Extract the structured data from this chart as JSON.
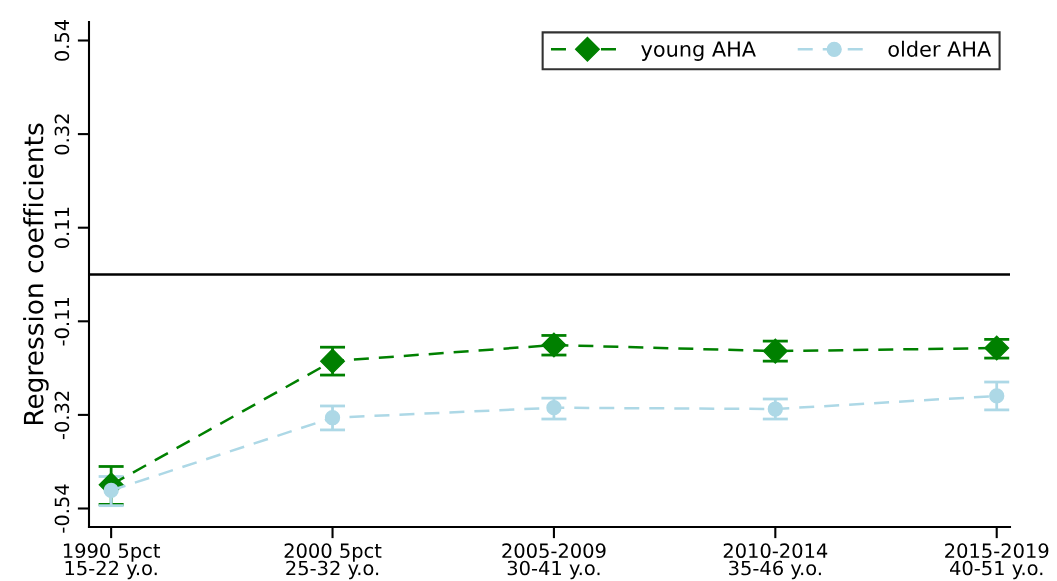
{
  "chart_data": {
    "type": "line",
    "ylabel": "Regression coefficients",
    "categories": [
      "1990 5pct\n15-22 y.o.",
      "2000 5pct\n25-32 y.o.",
      "2005-2009\n30-41 y.o.",
      "2010-2014\n35-46 y.o.",
      "2015-2019\n40-51 y.o."
    ],
    "ylim": [
      -0.58,
      0.58
    ],
    "yticks": [
      {
        "value": -0.5375,
        "label": "-0.54"
      },
      {
        "value": -0.3225,
        "label": "-0.32"
      },
      {
        "value": -0.1075,
        "label": "-0.11"
      },
      {
        "value": 0.1075,
        "label": "0.11"
      },
      {
        "value": 0.3225,
        "label": "0.32"
      },
      {
        "value": 0.5375,
        "label": "0.54"
      }
    ],
    "series": [
      {
        "name": "young AHA",
        "color": "#008000",
        "marker": "diamond",
        "line_style": "dashed",
        "values": [
          -0.483,
          -0.199,
          -0.162,
          -0.176,
          -0.169
        ],
        "errors": [
          [
            -0.528,
            -0.441
          ],
          [
            -0.231,
            -0.167
          ],
          [
            -0.185,
            -0.14
          ],
          [
            -0.199,
            -0.153
          ],
          [
            -0.192,
            -0.149
          ]
        ]
      },
      {
        "name": "older AHA",
        "color": "#add8e6",
        "marker": "circle",
        "line_style": "dashed",
        "values": [
          -0.496,
          -0.329,
          -0.306,
          -0.309,
          -0.279
        ],
        "errors": [
          [
            -0.531,
            -0.464
          ],
          [
            -0.357,
            -0.302
          ],
          [
            -0.332,
            -0.284
          ],
          [
            -0.332,
            -0.286
          ],
          [
            -0.311,
            -0.247
          ]
        ]
      }
    ],
    "ref_lines": [
      {
        "axis": "y",
        "value": 0,
        "color": "#000000",
        "line_style": "solid"
      }
    ],
    "legend": "top right",
    "grid": false
  }
}
